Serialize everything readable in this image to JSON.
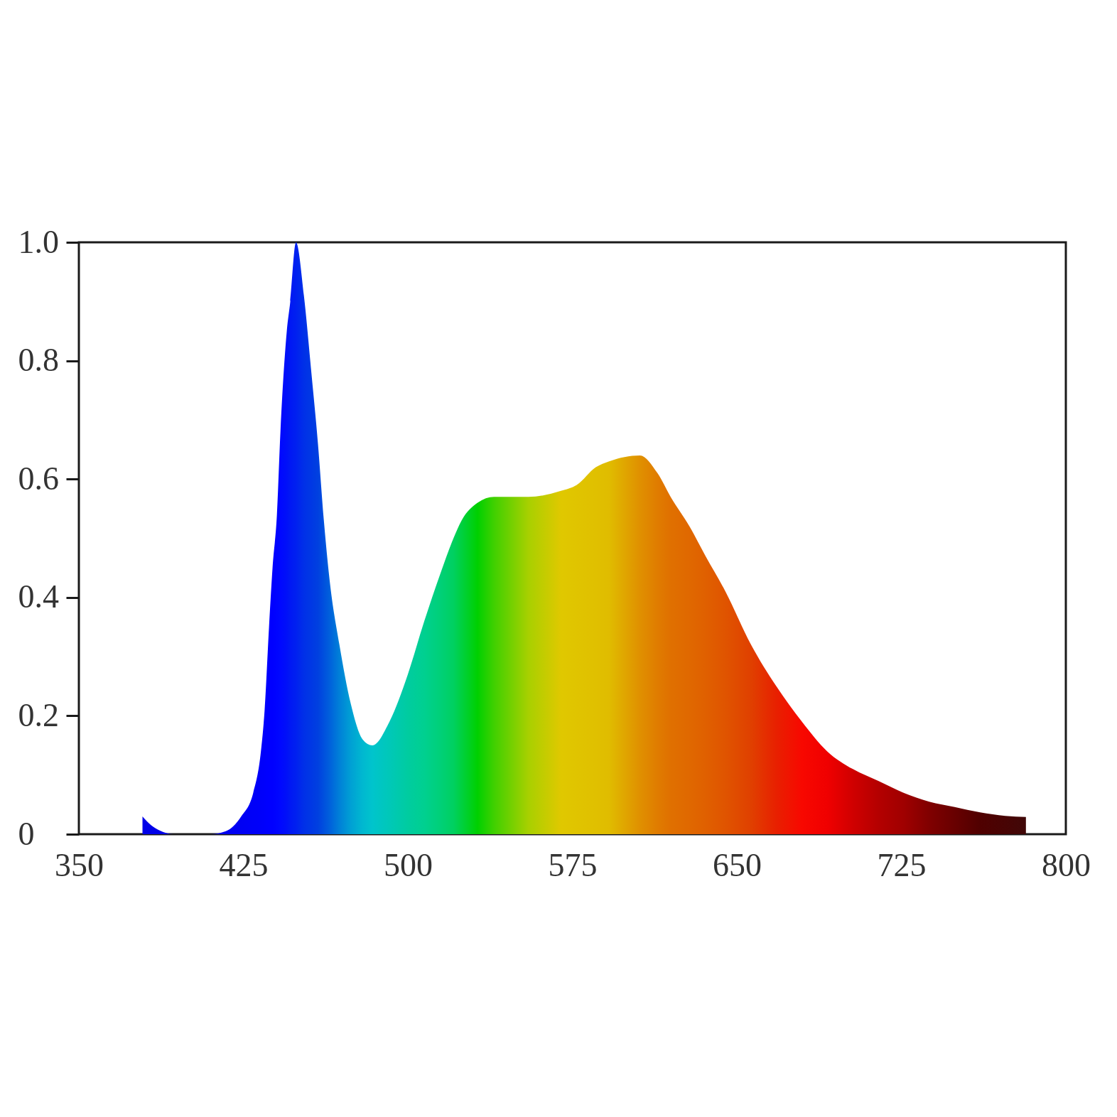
{
  "chart_data": {
    "type": "area",
    "x": [
      379,
      383,
      387,
      393,
      410,
      417,
      424,
      429.5,
      433,
      434.7,
      436.7,
      438.3,
      440.3,
      441.9,
      444.8,
      446.4,
      449,
      452.6,
      456,
      459,
      461.7,
      464.3,
      468.8,
      474,
      479.4,
      483.8,
      491.6,
      500,
      507.5,
      514.8,
      520.8,
      524.5,
      531.8,
      539.3,
      555,
      569.8,
      577,
      585.7,
      591.8,
      605.8,
      613.8,
      619.8,
      628.4,
      635.7,
      644.8,
      656.5,
      668,
      679.7,
      691.2,
      702.9,
      714.5,
      726,
      737.7,
      749.3,
      760.9,
      772.4,
      781.8
    ],
    "values": [
      0.03,
      0.015,
      0.006,
      0,
      0,
      0.005,
      0.03,
      0.07,
      0.14,
      0.21,
      0.35,
      0.45,
      0.54,
      0.68,
      0.85,
      0.9,
      1.0,
      0.91,
      0.78,
      0.66,
      0.53,
      0.43,
      0.32,
      0.22,
      0.16,
      0.15,
      0.19,
      0.27,
      0.36,
      0.44,
      0.5,
      0.53,
      0.56,
      0.57,
      0.57,
      0.58,
      0.59,
      0.62,
      0.63,
      0.64,
      0.61,
      0.57,
      0.52,
      0.47,
      0.41,
      0.32,
      0.25,
      0.19,
      0.14,
      0.11,
      0.09,
      0.07,
      0.055,
      0.046,
      0.037,
      0.031,
      0.029
    ],
    "colors": [
      "#0000e8",
      "#0000e8",
      "#0000e8",
      "#0000ea",
      "#0000ee",
      "#0000f0",
      "#0000f4",
      "#0000f8",
      "#0000fa",
      "#0000fc",
      "#0000ff",
      "#0000ff",
      "#0004ff",
      "#0008ff",
      "#0010f8",
      "#0018f4",
      "#0020f0",
      "#0030e8",
      "#0038e4",
      "#0040e0",
      "#0050de",
      "#0060dc",
      "#0080d8",
      "#00a0d4",
      "#00b8d0",
      "#00c4cc",
      "#00c8b8",
      "#00cca0",
      "#00d090",
      "#00d078",
      "#00d060",
      "#00d040",
      "#00d000",
      "#40d000",
      "#a8d000",
      "#e0c800",
      "#e0c400",
      "#e0c000",
      "#e0bc00",
      "#e09000",
      "#e07c00",
      "#e07000",
      "#e06800",
      "#e06000",
      "#e05400",
      "#e04000",
      "#e82000",
      "#f80800",
      "#f00000",
      "#d00000",
      "#b40000",
      "#a00000",
      "#800000",
      "#680000",
      "#500000",
      "#480404",
      "#400808"
    ],
    "xlim": [
      350,
      800
    ],
    "xticks": [
      350,
      425,
      500,
      575,
      650,
      725,
      800
    ],
    "ylim": [
      0,
      1
    ],
    "yticks": [
      0,
      0.2,
      0.4,
      0.6,
      0.8,
      {
        "value": 1,
        "label": "1.0"
      }
    ]
  }
}
